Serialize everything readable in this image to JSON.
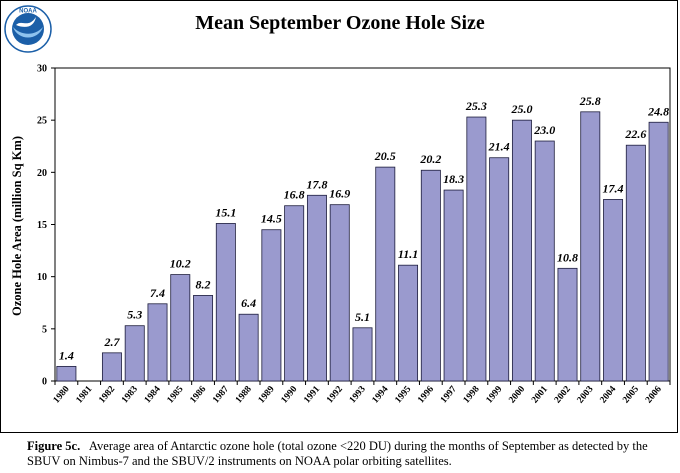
{
  "header": {
    "logo_text": "NOAA"
  },
  "caption": {
    "label": "Figure 5c.",
    "text": "Average area of Antarctic ozone hole (total ozone <220 DU) during the months of September as detected by the SBUV on Nimbus-7 and the SBUV/2 instruments on NOAA polar orbiting satellites."
  },
  "colors": {
    "bar_fill": "#9a9ace",
    "bar_stroke": "#1c1c3c",
    "logo_blue": "#1b5fa8",
    "logo_light": "#8ec3ee"
  },
  "chart_data": {
    "type": "bar",
    "title": "Mean September Ozone Hole Size",
    "xlabel": "",
    "ylabel": "Ozone Hole Area (million Sq Km)",
    "ylim": [
      0,
      30
    ],
    "yticks": [
      0,
      5,
      10,
      15,
      20,
      25,
      30
    ],
    "grid": false,
    "categories": [
      "1980",
      "1981",
      "1982",
      "1983",
      "1984",
      "1985",
      "1986",
      "1987",
      "1988",
      "1989",
      "1990",
      "1991",
      "1992",
      "1993",
      "1994",
      "1995",
      "1996",
      "1997",
      "1998",
      "1999",
      "2000",
      "2001",
      "2002",
      "2003",
      "2004",
      "2005",
      "2006"
    ],
    "values": [
      1.4,
      null,
      2.7,
      5.3,
      7.4,
      10.2,
      8.2,
      15.1,
      6.4,
      14.5,
      16.8,
      17.8,
      16.9,
      5.1,
      20.5,
      11.1,
      20.2,
      18.3,
      25.3,
      21.4,
      25.0,
      23.0,
      10.8,
      25.8,
      17.4,
      22.6,
      24.8
    ],
    "data_labels": [
      "1.4",
      "",
      "2.7",
      "5.3",
      "7.4",
      "10.2",
      "8.2",
      "15.1",
      "6.4",
      "14.5",
      "16.8",
      "17.8",
      "16.9",
      "5.1",
      "20.5",
      "11.1",
      "20.2",
      "18.3",
      "25.3",
      "21.4",
      "25.0",
      "23.0",
      "10.8",
      "25.8",
      "17.4",
      "22.6",
      "24.8"
    ]
  }
}
